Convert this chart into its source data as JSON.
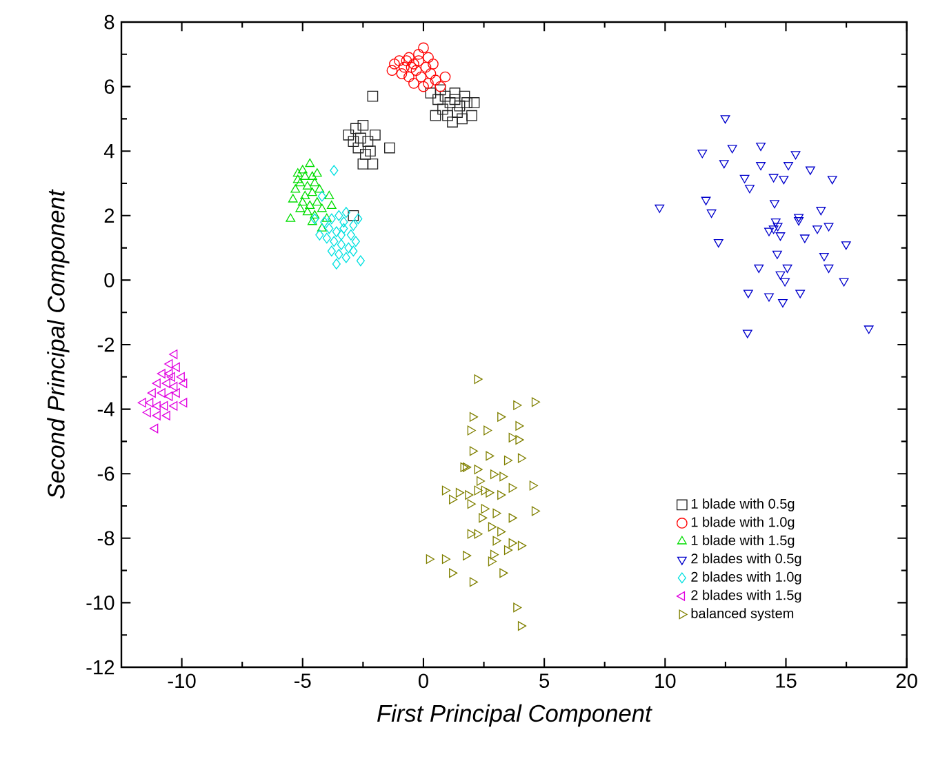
{
  "chart_data": {
    "type": "scatter",
    "xlabel": "First Principal Component",
    "ylabel": "Second Principal Component",
    "xlim": [
      -12.5,
      20
    ],
    "ylim": [
      -12,
      8
    ],
    "xticks": [
      -10,
      -5,
      0,
      5,
      10,
      15,
      20
    ],
    "yticks": [
      -12,
      -10,
      -8,
      -6,
      -4,
      -2,
      0,
      2,
      4,
      6,
      8
    ],
    "grid": false,
    "legend": "bottom right",
    "series": [
      {
        "name": "1 blade with 0.5g",
        "color": "#222222",
        "marker": "square",
        "x": [
          0.3,
          0.6,
          0.9,
          1.1,
          1.3,
          1.5,
          0.8,
          1.0,
          1.4,
          1.8,
          2.1,
          2.0,
          1.6,
          1.2,
          0.5,
          0.7,
          1.7,
          1.3,
          -3.1,
          -2.8,
          -2.5,
          -2.6,
          -2.3,
          -2.0,
          -2.7,
          -2.4,
          -2.2,
          -2.5,
          -2.1,
          -1.4,
          -2.9,
          -2.1,
          -2.9
        ],
        "values": [
          5.8,
          5.6,
          5.7,
          5.5,
          5.8,
          5.4,
          5.3,
          5.1,
          5.2,
          5.5,
          5.5,
          5.1,
          5.0,
          4.9,
          5.1,
          5.9,
          5.7,
          5.6,
          4.5,
          4.7,
          4.8,
          4.4,
          4.3,
          4.5,
          4.1,
          3.9,
          4.0,
          3.6,
          3.6,
          4.1,
          4.3,
          5.7,
          2.0
        ]
      },
      {
        "name": "1 blade with 1.0g",
        "color": "#ff0000",
        "marker": "circle",
        "x": [
          -1.2,
          -1.0,
          -0.8,
          -0.6,
          -0.4,
          -0.2,
          0.0,
          0.2,
          -0.9,
          -0.6,
          -0.3,
          -0.1,
          0.1,
          0.3,
          0.5,
          0.2,
          0.0,
          -0.5,
          -0.7,
          0.4,
          -0.2,
          0.7,
          0.9,
          -1.3,
          -0.4
        ],
        "values": [
          6.7,
          6.8,
          6.6,
          6.9,
          6.7,
          7.0,
          7.2,
          6.9,
          6.4,
          6.3,
          6.5,
          6.3,
          6.6,
          6.4,
          6.2,
          6.1,
          6.0,
          6.6,
          6.8,
          6.7,
          6.8,
          6.0,
          6.3,
          6.5,
          6.1
        ]
      },
      {
        "name": "1 blade with 1.5g",
        "color": "#00dd00",
        "marker": "triangle",
        "x": [
          -5.2,
          -5.0,
          -4.7,
          -4.6,
          -5.1,
          -4.8,
          -4.5,
          -5.3,
          -4.9,
          -4.6,
          -4.3,
          -5.0,
          -4.7,
          -4.4,
          -4.2,
          -4.8,
          -4.5,
          -4.0,
          -5.4,
          -5.1,
          -4.4,
          -3.9,
          -5.5,
          -4.6,
          -3.8,
          -5.2,
          -4.9,
          -4.2
        ],
        "values": [
          3.3,
          3.4,
          3.6,
          3.2,
          3.0,
          2.9,
          3.0,
          2.8,
          2.6,
          2.7,
          2.8,
          2.4,
          2.3,
          2.4,
          2.2,
          2.1,
          2.0,
          1.9,
          2.5,
          2.2,
          3.3,
          2.6,
          1.9,
          1.8,
          2.3,
          3.1,
          3.2,
          1.6
        ]
      },
      {
        "name": "2 blades with 0.5g",
        "color": "#0000cc",
        "marker": "triangle-down",
        "x": [
          12.49,
          11.54,
          12.78,
          13.96,
          15.4,
          12.44,
          13.96,
          15.1,
          16.01,
          13.29,
          14.49,
          14.91,
          16.92,
          13.5,
          9.77,
          11.69,
          11.92,
          14.53,
          16.45,
          14.58,
          15.53,
          14.3,
          14.77,
          15.78,
          16.3,
          16.77,
          12.21,
          17.49,
          14.64,
          16.58,
          16.77,
          13.88,
          15.06,
          14.77,
          14.96,
          17.4,
          13.44,
          14.3,
          14.87,
          15.59,
          13.41,
          18.43,
          14.49,
          14.66,
          15.53
        ],
        "values": [
          5.02,
          3.95,
          4.1,
          4.17,
          3.91,
          3.63,
          3.57,
          3.57,
          3.43,
          3.17,
          3.2,
          3.14,
          3.14,
          2.86,
          2.25,
          2.49,
          2.1,
          2.39,
          2.18,
          1.82,
          1.96,
          1.53,
          1.39,
          1.32,
          1.6,
          1.68,
          1.18,
          1.11,
          0.82,
          0.75,
          0.39,
          0.39,
          0.39,
          0.18,
          -0.03,
          -0.03,
          -0.39,
          -0.5,
          -0.68,
          -0.39,
          -1.63,
          -1.5,
          1.6,
          1.68,
          1.86
        ]
      },
      {
        "name": "2 blades with 1.0g",
        "color": "#00e0e0",
        "marker": "diamond",
        "x": [
          -3.7,
          -4.2,
          -4.5,
          -4.1,
          -3.8,
          -3.5,
          -3.2,
          -3.9,
          -3.6,
          -3.3,
          -3.0,
          -4.0,
          -3.7,
          -3.4,
          -3.1,
          -2.8,
          -3.5,
          -3.2,
          -2.9,
          -2.6,
          -3.8,
          -3.3,
          -2.9,
          -3.6,
          -2.7,
          -4.3,
          -3.4
        ],
        "values": [
          3.4,
          2.6,
          1.9,
          1.8,
          1.9,
          2.0,
          2.1,
          1.6,
          1.5,
          1.6,
          1.4,
          1.3,
          1.2,
          1.1,
          1.0,
          1.2,
          0.8,
          0.7,
          0.9,
          0.6,
          0.9,
          1.8,
          1.7,
          0.5,
          1.9,
          1.4,
          1.4
        ]
      },
      {
        "name": "2 blades with 1.5g",
        "color": "#e000e0",
        "marker": "triangle-left",
        "x": [
          -10.3,
          -10.5,
          -10.2,
          -10.8,
          -10.4,
          -10.0,
          -11.0,
          -10.6,
          -10.3,
          -9.9,
          -11.2,
          -10.8,
          -10.5,
          -10.2,
          -11.6,
          -11.3,
          -11.0,
          -10.7,
          -10.3,
          -9.9,
          -11.4,
          -11.0,
          -10.6,
          -11.1,
          -10.5
        ],
        "values": [
          -2.3,
          -2.6,
          -2.7,
          -2.9,
          -3.0,
          -3.0,
          -3.2,
          -3.2,
          -3.3,
          -3.2,
          -3.5,
          -3.5,
          -3.6,
          -3.5,
          -3.8,
          -3.8,
          -3.9,
          -3.9,
          -3.9,
          -3.8,
          -4.1,
          -4.2,
          -4.2,
          -4.6,
          -2.9
        ]
      },
      {
        "name": "balanced system",
        "color": "#808000",
        "marker": "triangle-right",
        "x": [
          2.22,
          3.84,
          4.6,
          2.03,
          3.18,
          3.93,
          2.61,
          3.65,
          3.93,
          1.94,
          2.03,
          2.7,
          3.46,
          4.03,
          1.65,
          2.22,
          2.89,
          3.27,
          2.32,
          3.65,
          4.51,
          0.89,
          1.46,
          2.22,
          2.7,
          3.18,
          1.18,
          1.94,
          2.51,
          2.99,
          3.65,
          4.6,
          2.41,
          2.8,
          1.94,
          3.18,
          2.22,
          2.99,
          3.65,
          4.03,
          2.89,
          3.46,
          0.23,
          0.89,
          1.75,
          2.8,
          1.18,
          2.03,
          3.27,
          3.84,
          4.03,
          1.75,
          2.51,
          1.84
        ],
        "values": [
          -3.07,
          -3.88,
          -3.78,
          -4.24,
          -4.24,
          -4.52,
          -4.66,
          -4.88,
          -4.95,
          -4.66,
          -5.3,
          -5.45,
          -5.59,
          -5.52,
          -5.8,
          -5.87,
          -6.02,
          -6.09,
          -6.23,
          -6.44,
          -6.37,
          -6.52,
          -6.59,
          -6.52,
          -6.59,
          -6.66,
          -6.8,
          -6.94,
          -7.09,
          -7.23,
          -7.37,
          -7.16,
          -7.37,
          -7.65,
          -7.87,
          -7.8,
          -7.87,
          -8.08,
          -8.15,
          -8.23,
          -8.51,
          -8.37,
          -8.65,
          -8.65,
          -8.54,
          -8.72,
          -9.08,
          -9.36,
          -9.08,
          -10.15,
          -10.72,
          -5.8,
          -6.52,
          -6.66
        ]
      }
    ]
  }
}
